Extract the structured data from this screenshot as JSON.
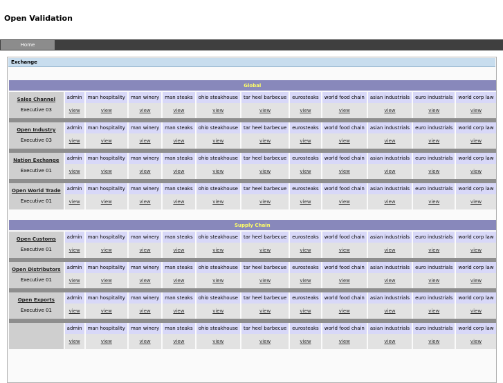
{
  "app_title": "Open Validation",
  "nav": {
    "tabs": [
      {
        "label": "Home"
      }
    ]
  },
  "panel": {
    "title": "Exchange"
  },
  "columns": [
    "admin",
    "man hospitality",
    "man winery",
    "man steaks",
    "ohio steakhouse",
    "tar heel barbecue",
    "eurosteaks",
    "world food chain",
    "asian industrials",
    "euro industrials",
    "world corp law"
  ],
  "view_label": "view",
  "sections": [
    {
      "title": "Global",
      "rows": [
        {
          "name": "Sales Channel",
          "exec": "Executive 03"
        },
        {
          "name": "Open Industry",
          "exec": "Executive 03"
        },
        {
          "name": "Nation Exchange",
          "exec": "Executive 01"
        },
        {
          "name": "Open World Trade",
          "exec": "Executive 01"
        }
      ]
    },
    {
      "title": "Supply Chain",
      "rows": [
        {
          "name": "Open Customs",
          "exec": "Executive 01"
        },
        {
          "name": "Open Distributors",
          "exec": "Executive 01"
        },
        {
          "name": "Open Exports",
          "exec": "Executive 01"
        },
        {
          "name": "",
          "exec": ""
        }
      ]
    }
  ]
}
